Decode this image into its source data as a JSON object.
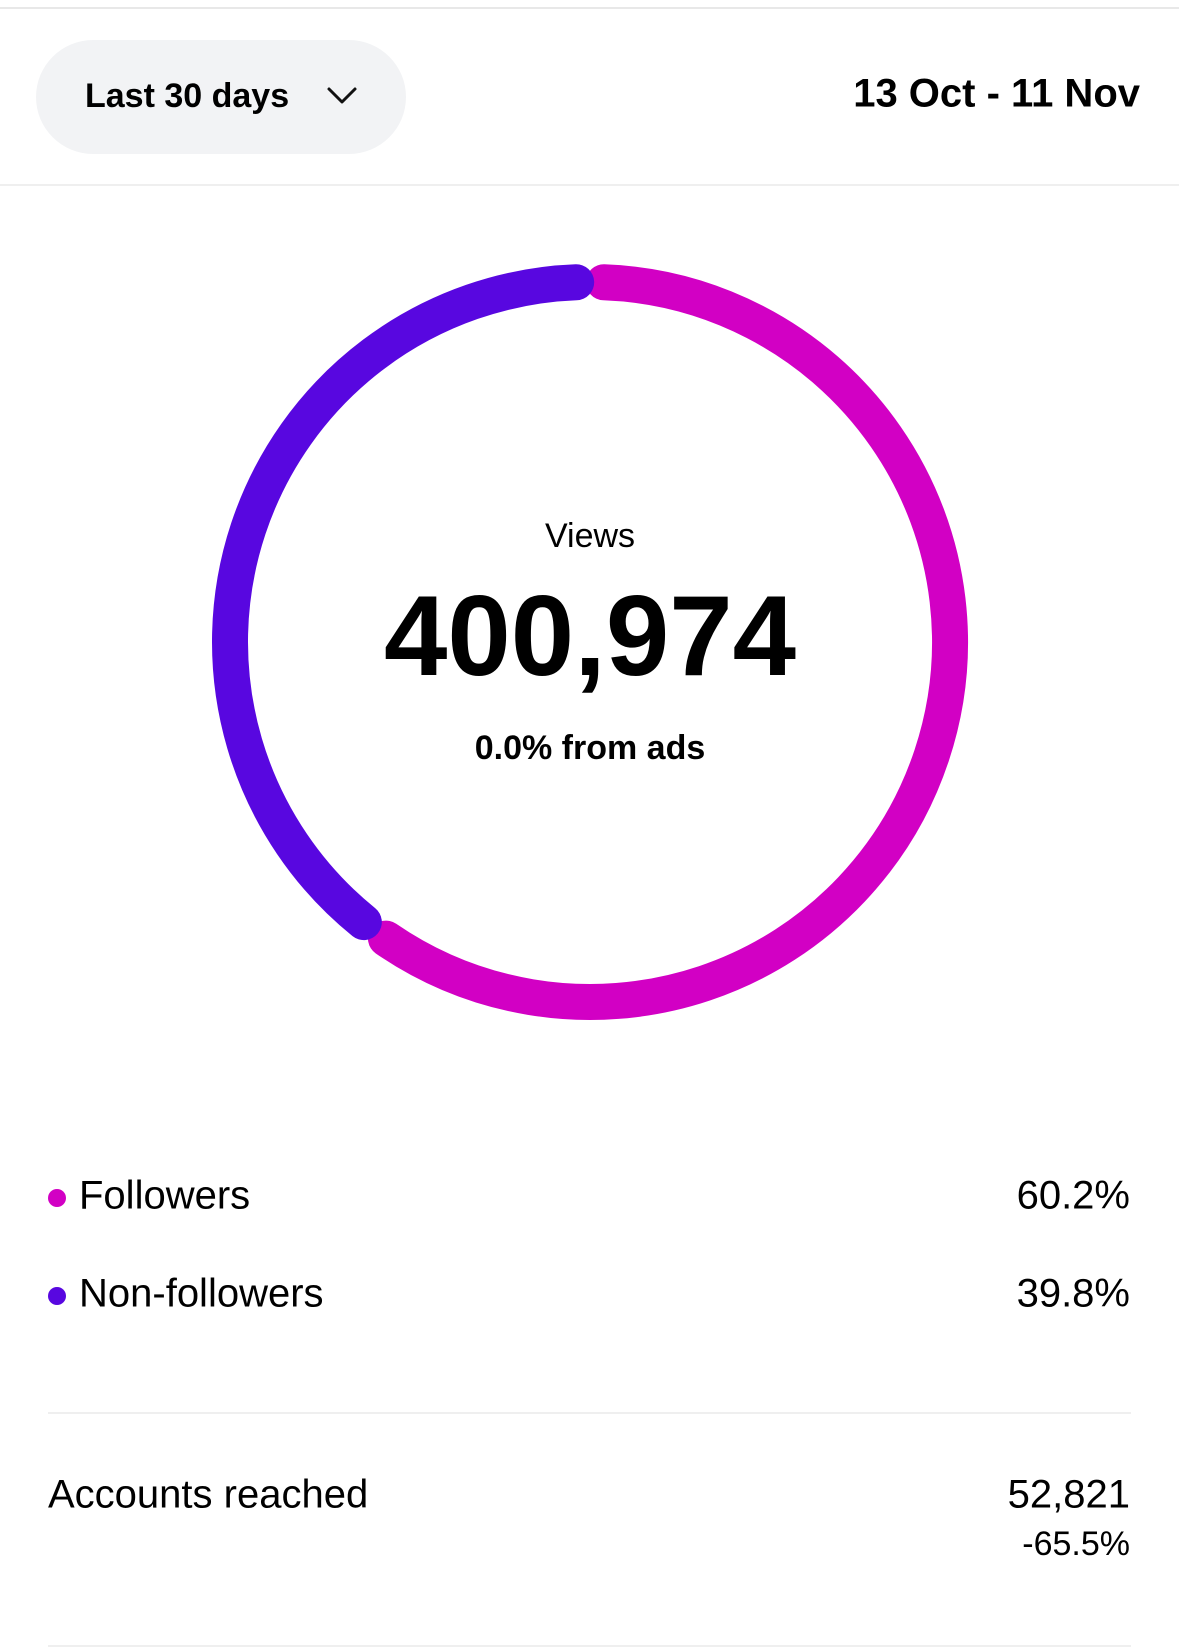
{
  "header": {
    "period": "Last 30 days",
    "date_range": "13 Oct - 11 Nov"
  },
  "summary": {
    "label": "Views",
    "value": "400,974",
    "subtitle": "0.0% from ads"
  },
  "chart_data": {
    "type": "donut",
    "categories": [
      "Followers",
      "Non-followers"
    ],
    "values": [
      60.2,
      39.8
    ],
    "value_labels": [
      "60.2%",
      "39.8%"
    ],
    "colors": [
      "#d200c4",
      "#5807e0"
    ]
  },
  "accounts": {
    "label": "Accounts reached",
    "value": "52,821",
    "change": "-65.5%"
  }
}
